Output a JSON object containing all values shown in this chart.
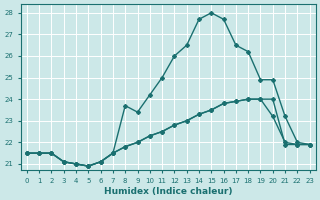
{
  "xlabel": "Humidex (Indice chaleur)",
  "xlim": [
    -0.5,
    23.5
  ],
  "ylim": [
    20.7,
    28.4
  ],
  "bg_color": "#cce8e8",
  "grid_color": "#ffffff",
  "line_color": "#1a7070",
  "line1_x": [
    0,
    1,
    2,
    3,
    4,
    5,
    6,
    7,
    8,
    9,
    10,
    11,
    12,
    13,
    14,
    15,
    16,
    17,
    18,
    19,
    20,
    21,
    22,
    23
  ],
  "line1_y": [
    21.5,
    21.5,
    21.5,
    21.1,
    21.0,
    20.9,
    21.1,
    21.5,
    21.8,
    22.0,
    22.3,
    22.5,
    22.8,
    23.0,
    23.3,
    23.5,
    23.8,
    23.9,
    24.0,
    24.0,
    24.0,
    21.9,
    21.9,
    21.9
  ],
  "line2_x": [
    0,
    1,
    2,
    3,
    4,
    5,
    6,
    7,
    8,
    9,
    10,
    11,
    12,
    13,
    14,
    15,
    16,
    17,
    18,
    19,
    20,
    21,
    22,
    23
  ],
  "line2_y": [
    21.5,
    21.5,
    21.5,
    21.1,
    21.0,
    20.9,
    21.1,
    21.5,
    21.8,
    22.0,
    22.3,
    22.5,
    22.8,
    23.0,
    23.3,
    23.5,
    23.8,
    23.9,
    24.0,
    24.0,
    23.2,
    22.0,
    21.9,
    21.9
  ],
  "line3_x": [
    0,
    1,
    2,
    3,
    4,
    5,
    6,
    7,
    8,
    9,
    10,
    11,
    12,
    13,
    14,
    15,
    16,
    17,
    18,
    19,
    20,
    21,
    22,
    23
  ],
  "line3_y": [
    21.5,
    21.5,
    21.5,
    21.1,
    21.0,
    20.9,
    21.1,
    21.5,
    23.7,
    23.4,
    24.2,
    25.0,
    26.0,
    26.5,
    27.7,
    28.0,
    27.7,
    26.5,
    26.2,
    24.9,
    24.9,
    23.2,
    22.0,
    21.9
  ],
  "xticks": [
    0,
    1,
    2,
    3,
    4,
    5,
    6,
    7,
    8,
    9,
    10,
    11,
    12,
    13,
    14,
    15,
    16,
    17,
    18,
    19,
    20,
    21,
    22,
    23
  ],
  "yticks": [
    21,
    22,
    23,
    24,
    25,
    26,
    27,
    28
  ],
  "markersize": 2.0,
  "linewidth": 1.0
}
